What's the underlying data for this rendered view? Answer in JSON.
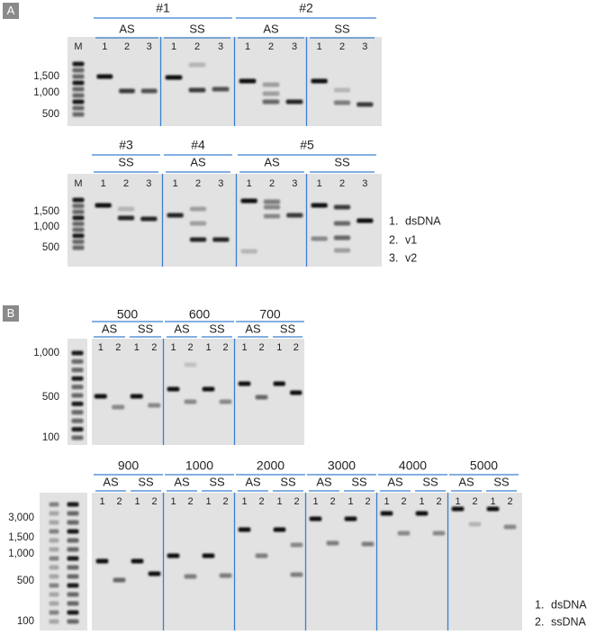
{
  "panel_a": {
    "label": "A",
    "rows": [
      {
        "marker_lane": "M",
        "size_labels": [
          "1,500",
          "1,000",
          "500"
        ],
        "groups": [
          {
            "title": "#1",
            "subgroups": [
              {
                "label": "AS",
                "lanes": [
                  "1",
                  "2",
                  "3"
                ]
              },
              {
                "label": "SS",
                "lanes": [
                  "1",
                  "2",
                  "3"
                ]
              }
            ]
          },
          {
            "title": "#2",
            "subgroups": [
              {
                "label": "AS",
                "lanes": [
                  "1",
                  "2",
                  "3"
                ]
              },
              {
                "label": "SS",
                "lanes": [
                  "1",
                  "2",
                  "3"
                ]
              }
            ]
          }
        ]
      },
      {
        "marker_lane": "M",
        "size_labels": [
          "1,500",
          "1,000",
          "500"
        ],
        "groups": [
          {
            "title": "#3",
            "subgroups": [
              {
                "label": "SS",
                "lanes": [
                  "1",
                  "2",
                  "3"
                ]
              }
            ]
          },
          {
            "title": "#4",
            "subgroups": [
              {
                "label": "AS",
                "lanes": [
                  "1",
                  "2",
                  "3"
                ]
              }
            ]
          },
          {
            "title": "#5",
            "subgroups": [
              {
                "label": "AS",
                "lanes": [
                  "1",
                  "2",
                  "3"
                ]
              },
              {
                "label": "SS",
                "lanes": [
                  "1",
                  "2",
                  "3"
                ]
              }
            ]
          }
        ]
      }
    ],
    "legend": [
      "1.",
      "dsDNA",
      "2.",
      "v1",
      "3.",
      "v2"
    ]
  },
  "panel_b": {
    "label": "B",
    "rows": [
      {
        "size_labels": [
          "1,000",
          "500",
          "100"
        ],
        "groups": [
          {
            "title": "500",
            "subgroups": [
              {
                "label": "AS",
                "lanes": [
                  "1",
                  "2"
                ]
              },
              {
                "label": "SS",
                "lanes": [
                  "1",
                  "2"
                ]
              }
            ]
          },
          {
            "title": "600",
            "subgroups": [
              {
                "label": "AS",
                "lanes": [
                  "1",
                  "2"
                ]
              },
              {
                "label": "SS",
                "lanes": [
                  "1",
                  "2"
                ]
              }
            ]
          },
          {
            "title": "700",
            "subgroups": [
              {
                "label": "AS",
                "lanes": [
                  "1",
                  "2"
                ]
              },
              {
                "label": "SS",
                "lanes": [
                  "1",
                  "2"
                ]
              }
            ]
          }
        ]
      },
      {
        "size_labels": [
          "3,000",
          "1,500",
          "1,000",
          "500",
          "100"
        ],
        "groups": [
          {
            "title": "900",
            "subgroups": [
              {
                "label": "AS",
                "lanes": [
                  "1",
                  "2"
                ]
              },
              {
                "label": "SS",
                "lanes": [
                  "1",
                  "2"
                ]
              }
            ]
          },
          {
            "title": "1000",
            "subgroups": [
              {
                "label": "AS",
                "lanes": [
                  "1",
                  "2"
                ]
              },
              {
                "label": "SS",
                "lanes": [
                  "1",
                  "2"
                ]
              }
            ]
          },
          {
            "title": "2000",
            "subgroups": [
              {
                "label": "AS",
                "lanes": [
                  "1",
                  "2"
                ]
              },
              {
                "label": "SS",
                "lanes": [
                  "1",
                  "2"
                ]
              }
            ]
          },
          {
            "title": "3000",
            "subgroups": [
              {
                "label": "AS",
                "lanes": [
                  "1",
                  "2"
                ]
              },
              {
                "label": "SS",
                "lanes": [
                  "1",
                  "2"
                ]
              }
            ]
          },
          {
            "title": "4000",
            "subgroups": [
              {
                "label": "AS",
                "lanes": [
                  "1",
                  "2"
                ]
              },
              {
                "label": "SS",
                "lanes": [
                  "1",
                  "2"
                ]
              }
            ]
          },
          {
            "title": "5000",
            "subgroups": [
              {
                "label": "AS",
                "lanes": [
                  "1",
                  "2"
                ]
              },
              {
                "label": "SS",
                "lanes": [
                  "1",
                  "2"
                ]
              }
            ]
          }
        ]
      }
    ],
    "legend": [
      "1.",
      "dsDNA",
      "2.",
      "ssDNA"
    ]
  }
}
